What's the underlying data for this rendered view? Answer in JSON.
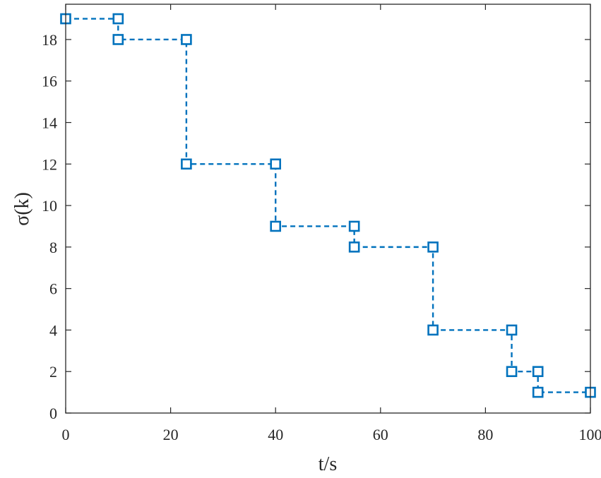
{
  "chart_data": {
    "type": "line",
    "style": "step",
    "xlabel": "t/s",
    "ylabel": "σ(k)",
    "xlim": [
      0,
      100
    ],
    "ylim": [
      0,
      19.7
    ],
    "xticks": [
      0,
      20,
      40,
      60,
      80,
      100
    ],
    "yticks": [
      0,
      2,
      4,
      6,
      8,
      10,
      12,
      14,
      16,
      18
    ],
    "grid": false,
    "color": "#0072BD",
    "marker": "square",
    "series": [
      {
        "points": [
          [
            0,
            19
          ],
          [
            10,
            19
          ],
          [
            10,
            18
          ],
          [
            23,
            18
          ],
          [
            23,
            12
          ],
          [
            40,
            12
          ],
          [
            40,
            9
          ],
          [
            55,
            9
          ],
          [
            55,
            8
          ],
          [
            70,
            8
          ],
          [
            70,
            4
          ],
          [
            85,
            4
          ],
          [
            85,
            2
          ],
          [
            90,
            2
          ],
          [
            90,
            1
          ],
          [
            100,
            1
          ]
        ]
      }
    ]
  }
}
